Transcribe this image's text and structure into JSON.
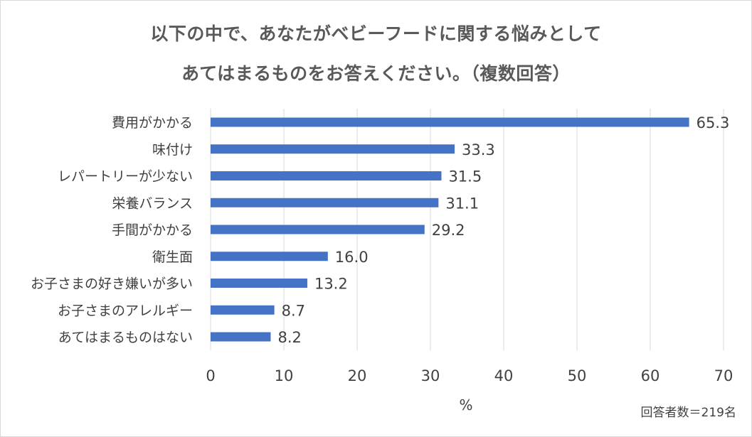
{
  "chart_data": {
    "type": "bar",
    "orientation": "horizontal",
    "title_line1": "以下の中で、あなたがベビーフードに関する悩みとして",
    "title_line2": "あてはまるものをお答えください。（複数回答）",
    "categories": [
      "費用がかかる",
      "味付け",
      "レパートリーが少ない",
      "栄養バランス",
      "手間がかかる",
      "衛生面",
      "お子さまの好き嫌いが多い",
      "お子さまのアレルギー",
      "あてはまるものはない"
    ],
    "values": [
      65.3,
      33.3,
      31.5,
      31.1,
      29.2,
      16.0,
      13.2,
      8.7,
      8.2
    ],
    "data_labels": [
      "65.3",
      "33.3",
      "31.5",
      "31.1",
      "29.2",
      "16.0",
      "13.2",
      "8.7",
      "8.2"
    ],
    "xlabel": "%",
    "xlim": [
      0,
      70
    ],
    "xticks": [
      "0",
      "10",
      "20",
      "30",
      "40",
      "50",
      "60",
      "70"
    ],
    "grid": true,
    "bar_color": "#4472c4",
    "note": "回答者数＝219名"
  }
}
